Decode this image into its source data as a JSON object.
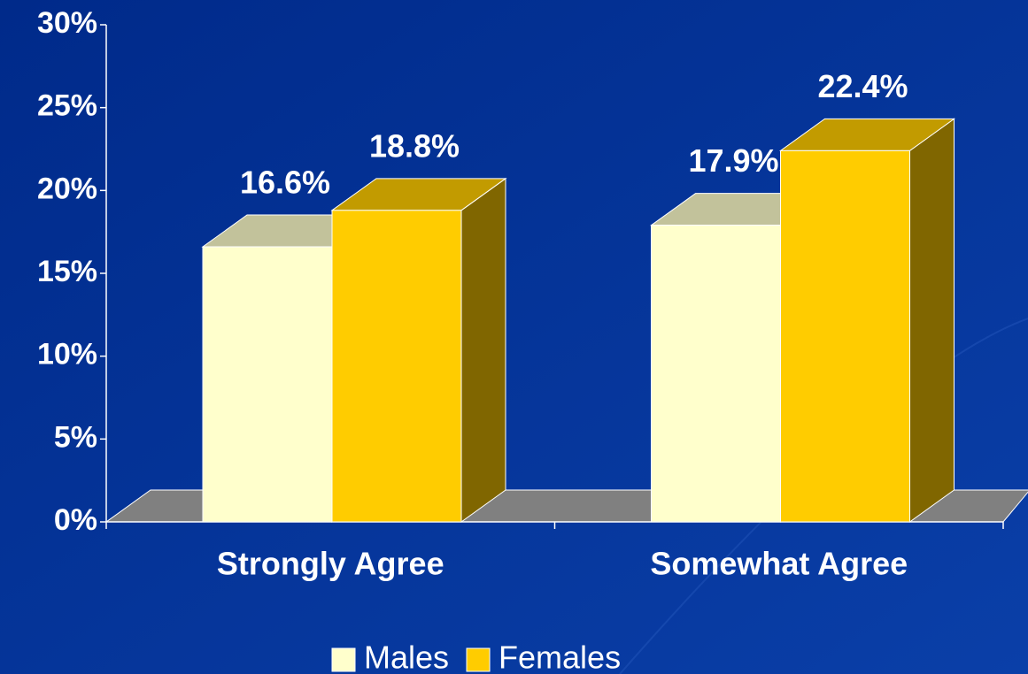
{
  "chart_data": {
    "type": "bar3d",
    "categories": [
      "Strongly Agree",
      "Somewhat Agree"
    ],
    "series": [
      {
        "name": "Males",
        "color": "#FFFFCC",
        "values": [
          16.6,
          17.9
        ],
        "value_labels": [
          "16.6%",
          "17.9%"
        ]
      },
      {
        "name": "Females",
        "color": "#FFCC00",
        "values": [
          18.8,
          22.4
        ],
        "value_labels": [
          "18.8%",
          "22.4%"
        ]
      }
    ],
    "ylim": [
      0,
      30
    ],
    "yticks": [
      {
        "value": 0,
        "label": "0%"
      },
      {
        "value": 5,
        "label": "5%"
      },
      {
        "value": 10,
        "label": "10%"
      },
      {
        "value": 15,
        "label": "15%"
      },
      {
        "value": 20,
        "label": "20%"
      },
      {
        "value": 25,
        "label": "25%"
      },
      {
        "value": 30,
        "label": "30%"
      }
    ],
    "legend": "bottom"
  }
}
